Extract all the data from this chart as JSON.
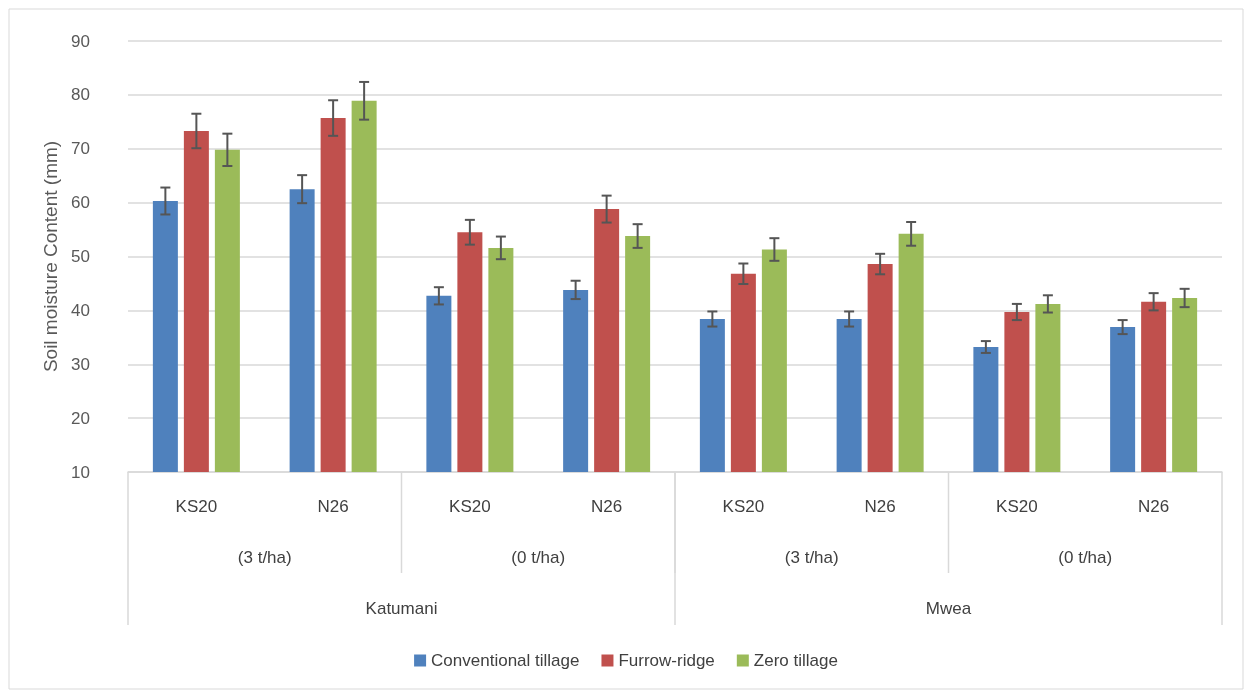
{
  "chart_data": {
    "type": "bar",
    "ylabel": "Soil moisture Content (mm)",
    "categories": [
      "KS20",
      "N26",
      "KS20",
      "N26",
      "KS20",
      "N26",
      "KS20",
      "N26"
    ],
    "annotations": [
      "(3 t/ha)",
      "(0 t/ha)",
      "(3 t/ha)",
      "(0 t/ha)",
      "Katumani",
      "Mwea"
    ],
    "series": [
      {
        "name": "Conventional tillage",
        "color": "#4f81bd",
        "values": [
          60.3,
          62.5,
          42.7,
          43.8,
          38.4,
          38.4,
          33.2,
          36.9
        ],
        "errors": [
          2.5,
          2.6,
          1.6,
          1.7,
          1.4,
          1.4,
          1.1,
          1.3
        ]
      },
      {
        "name": "Furrow-ridge",
        "color": "#c0504d",
        "values": [
          73.3,
          75.7,
          54.5,
          58.8,
          46.8,
          48.6,
          39.7,
          41.6
        ],
        "errors": [
          3.2,
          3.3,
          2.3,
          2.5,
          1.9,
          1.9,
          1.5,
          1.6
        ]
      },
      {
        "name": "Zero tillage",
        "color": "#9bbb59",
        "values": [
          69.8,
          78.9,
          51.6,
          53.8,
          51.3,
          54.2,
          41.2,
          42.3
        ],
        "errors": [
          3.0,
          3.5,
          2.1,
          2.2,
          2.1,
          2.2,
          1.6,
          1.7
        ]
      }
    ],
    "ylim": [
      10,
      90
    ],
    "yticks": [
      10,
      20,
      30,
      40,
      50,
      60,
      70,
      80,
      90
    ],
    "grid": "y",
    "legend": "bottom"
  }
}
